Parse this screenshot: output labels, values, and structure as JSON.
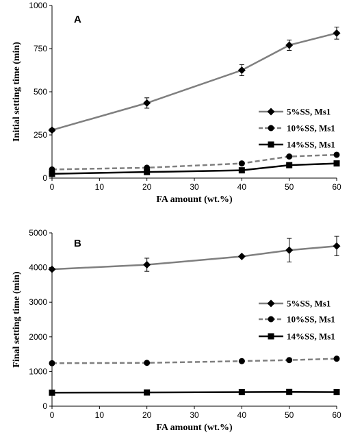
{
  "chart_data": [
    {
      "type": "line",
      "panel_label": "A",
      "xlabel": "FA amount (wt.%)",
      "ylabel": "Initial setting time (min)",
      "xlim": [
        0,
        60
      ],
      "ylim": [
        0,
        1000
      ],
      "xticks": [
        0,
        10,
        20,
        30,
        40,
        50,
        60
      ],
      "yticks": [
        0,
        250,
        500,
        750,
        1000
      ],
      "grid": false,
      "legend_position": "right",
      "x": [
        0,
        20,
        40,
        50,
        60
      ],
      "series": [
        {
          "name": "5%SS, Ms1",
          "marker": "diamond",
          "line": "solid",
          "color": "#7f7f7f",
          "values": [
            278,
            435,
            625,
            770,
            840
          ],
          "error": [
            10,
            30,
            32,
            30,
            35
          ]
        },
        {
          "name": "10%SS, Ms1",
          "marker": "circle",
          "line": "dashed",
          "color": "#7f7f7f",
          "values": [
            50,
            60,
            85,
            125,
            135
          ],
          "error": [
            0,
            0,
            0,
            0,
            0
          ]
        },
        {
          "name": "14%SS, Ms1",
          "marker": "square",
          "line": "solid",
          "color": "#000000",
          "values": [
            25,
            35,
            45,
            75,
            85
          ],
          "error": [
            0,
            0,
            0,
            0,
            0
          ]
        }
      ]
    },
    {
      "type": "line",
      "panel_label": "B",
      "xlabel": "FA amount (wt.%)",
      "ylabel": "Final setting time (min)",
      "xlim": [
        0,
        60
      ],
      "ylim": [
        0,
        5000
      ],
      "xticks": [
        0,
        10,
        20,
        30,
        40,
        50,
        60
      ],
      "yticks": [
        0,
        1000,
        2000,
        3000,
        4000,
        5000
      ],
      "grid": false,
      "legend_position": "right",
      "x": [
        0,
        20,
        40,
        50,
        60
      ],
      "series": [
        {
          "name": "5%SS, Ms1",
          "marker": "diamond",
          "line": "solid",
          "color": "#7f7f7f",
          "values": [
            3950,
            4080,
            4320,
            4500,
            4620
          ],
          "error": [
            0,
            190,
            0,
            340,
            280
          ]
        },
        {
          "name": "10%SS, Ms1",
          "marker": "circle",
          "line": "dashed",
          "color": "#7f7f7f",
          "values": [
            1240,
            1250,
            1300,
            1330,
            1370
          ],
          "error": [
            0,
            0,
            0,
            0,
            0
          ]
        },
        {
          "name": "14%SS, Ms1",
          "marker": "square",
          "line": "solid",
          "color": "#000000",
          "values": [
            390,
            395,
            405,
            410,
            405
          ],
          "error": [
            0,
            0,
            0,
            0,
            0
          ]
        }
      ]
    }
  ]
}
